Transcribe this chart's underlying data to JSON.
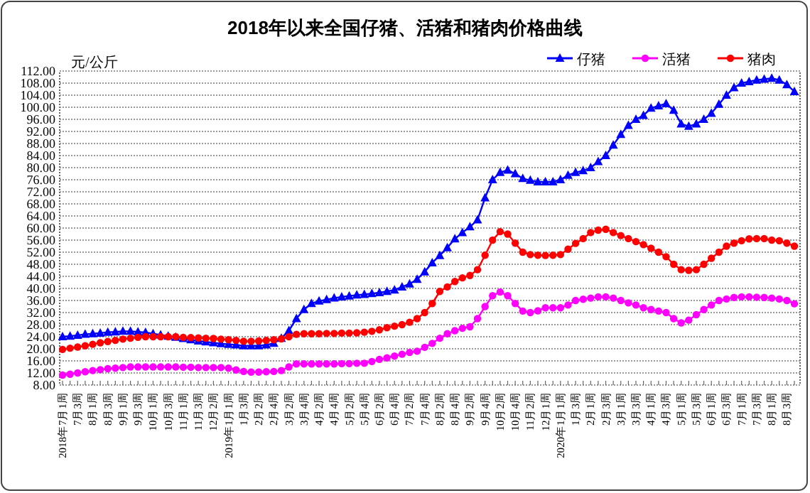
{
  "chart_data": {
    "type": "line",
    "title": "2018年以来全国仔猪、活猪和猪肉价格曲线",
    "ylabel": "元/公斤",
    "categories": [
      "2018年7月1周",
      null,
      "7月3周",
      null,
      "8月1周",
      null,
      "8月3周",
      null,
      "9月1周",
      null,
      "9月3周",
      null,
      "10月1周",
      null,
      "10月3周",
      null,
      "11月1周",
      null,
      "11月3周",
      null,
      "12月2周",
      null,
      "2019年1月1周",
      null,
      "1月3周",
      null,
      "2月2周",
      null,
      "2月4周",
      null,
      "3月2周",
      null,
      "3月4周",
      null,
      "4月2周",
      null,
      "4月4周",
      null,
      "5月2周",
      null,
      "5月4周",
      null,
      "6月2周",
      null,
      "6月4周",
      null,
      "7月2周",
      null,
      "7月4周",
      null,
      "8月2周",
      null,
      "8月4周",
      null,
      "9月2周",
      null,
      "9月4周",
      null,
      "10月2周",
      null,
      "10月4周",
      null,
      "11月2周",
      null,
      "12月1周",
      null,
      "2020年1月1周",
      null,
      "1月3周",
      null,
      "2月1周",
      null,
      "2月3周",
      null,
      "3月1周",
      null,
      "3月3周",
      null,
      "4月1周",
      null,
      "4月3周",
      null,
      "5月1周",
      null,
      "5月3周",
      null,
      "6月1周",
      null,
      "6月3周",
      null,
      "7月1周",
      null,
      "7月3周",
      null,
      "8月1周",
      null,
      "8月3周",
      null
    ],
    "series": [
      {
        "name": "仔猪",
        "color": "#0000ff",
        "marker": "triangle",
        "values": [
          24,
          24.2,
          24.5,
          24.8,
          25,
          25.2,
          25.5,
          25.6,
          25.8,
          25.8,
          25.6,
          25.4,
          25,
          24.6,
          24.2,
          23.8,
          23.4,
          23,
          22.6,
          22.3,
          22,
          21.7,
          21.5,
          21.3,
          21,
          21,
          21,
          21.3,
          21.8,
          23.5,
          26,
          30,
          33,
          35,
          35.8,
          36.3,
          36.8,
          37.2,
          37.5,
          37.8,
          38,
          38.3,
          38.6,
          39,
          39.5,
          40.5,
          41.5,
          43,
          45.5,
          48.5,
          50.9,
          53.5,
          56.4,
          58.5,
          60.4,
          62.7,
          70,
          76,
          78.4,
          79.2,
          78,
          76.4,
          75.8,
          75.3,
          75.3,
          75.3,
          76,
          77.5,
          78.4,
          79,
          80,
          82,
          84,
          87.5,
          91,
          94,
          96,
          97.3,
          99.7,
          100.5,
          101.2,
          99,
          94.5,
          93.7,
          94.5,
          96,
          98,
          101,
          104,
          106.5,
          108,
          108.5,
          109,
          109.3,
          109.6,
          109,
          107.5,
          105.2
        ]
      },
      {
        "name": "活猪",
        "color": "#ff00ff",
        "marker": "circle",
        "values": [
          11.3,
          11.6,
          12,
          12.4,
          12.8,
          13.1,
          13.4,
          13.6,
          13.8,
          14,
          14,
          14,
          14,
          14,
          14,
          14,
          13.9,
          13.9,
          13.8,
          13.8,
          13.8,
          13.8,
          13.6,
          13,
          12.5,
          12.3,
          12.3,
          12.4,
          12.5,
          12.8,
          14,
          15,
          15,
          15,
          15,
          15,
          15,
          15.1,
          15.1,
          15.2,
          15.2,
          15.8,
          16.5,
          17,
          17.6,
          18.2,
          18.8,
          19.2,
          20.5,
          21.8,
          23.5,
          25,
          26,
          26.8,
          27.3,
          30,
          34,
          37.6,
          38.8,
          37.6,
          35,
          32.5,
          32,
          32.6,
          33.6,
          33.6,
          33.6,
          34.5,
          36,
          36.4,
          36.8,
          37.2,
          37.2,
          36.8,
          36,
          35.2,
          34.5,
          33.6,
          33,
          32.5,
          32,
          30,
          28.6,
          29.5,
          31.3,
          33,
          34.5,
          36,
          36.5,
          37,
          37.2,
          37.2,
          37.1,
          37,
          36.8,
          36.5,
          36,
          34.9
        ]
      },
      {
        "name": "猪肉",
        "color": "#ff0000",
        "marker": "circle",
        "values": [
          19.8,
          20.2,
          20.6,
          21,
          21.5,
          22,
          22.4,
          22.8,
          23.2,
          23.5,
          23.8,
          24,
          24,
          24,
          24,
          24,
          23.8,
          23.7,
          23.6,
          23.5,
          23.4,
          23.2,
          23,
          22.8,
          22.5,
          22.5,
          22.6,
          22.8,
          23,
          23.3,
          24,
          24.8,
          25,
          25,
          25,
          25.1,
          25.1,
          25.2,
          25.2,
          25.3,
          25.5,
          25.8,
          26.3,
          27,
          27.5,
          28,
          28.8,
          30,
          32,
          35,
          39,
          40.5,
          42.3,
          43.5,
          44.3,
          46.2,
          51,
          56,
          58.8,
          58,
          55,
          52,
          51.2,
          51,
          50.9,
          51,
          51.2,
          53,
          54.9,
          56.5,
          58.5,
          59.3,
          59.6,
          58.5,
          57.5,
          56.5,
          55.5,
          54.5,
          53.3,
          52,
          50.5,
          48,
          46.2,
          46,
          46.2,
          48,
          50,
          52,
          54,
          55,
          55.8,
          56.4,
          56.5,
          56.5,
          56,
          55.8,
          55,
          54
        ]
      }
    ],
    "ylim": [
      8,
      112
    ],
    "yticks": [
      {
        "value": 8,
        "label": "8.00"
      },
      {
        "value": 12,
        "label": "12.00"
      },
      {
        "value": 16,
        "label": "16.00"
      },
      {
        "value": 20,
        "label": "20.00"
      },
      {
        "value": 24,
        "label": "24.00"
      },
      {
        "value": 28,
        "label": "28.00"
      },
      {
        "value": 32,
        "label": "32.00"
      },
      {
        "value": 36,
        "label": "36.00"
      },
      {
        "value": 40,
        "label": "40.00"
      },
      {
        "value": 44,
        "label": "44.00"
      },
      {
        "value": 48,
        "label": "48.00"
      },
      {
        "value": 52,
        "label": "52.00"
      },
      {
        "value": 56,
        "label": "56.00"
      },
      {
        "value": 60,
        "label": "60.00"
      },
      {
        "value": 64,
        "label": "64.00"
      },
      {
        "value": 68,
        "label": "68.00"
      },
      {
        "value": 72,
        "label": "72.00"
      },
      {
        "value": 76,
        "label": "76.00"
      },
      {
        "value": 80,
        "label": "80.00"
      },
      {
        "value": 84,
        "label": "84.00"
      },
      {
        "value": 88,
        "label": "88.00"
      },
      {
        "value": 92,
        "label": "92.00"
      },
      {
        "value": 96,
        "label": "96.00"
      },
      {
        "value": 100,
        "label": "100.00"
      },
      {
        "value": 104,
        "label": "104.00"
      },
      {
        "value": 108,
        "label": "108.00"
      },
      {
        "value": 112,
        "label": "112.00"
      }
    ],
    "grid": "y",
    "legend": "top right"
  }
}
